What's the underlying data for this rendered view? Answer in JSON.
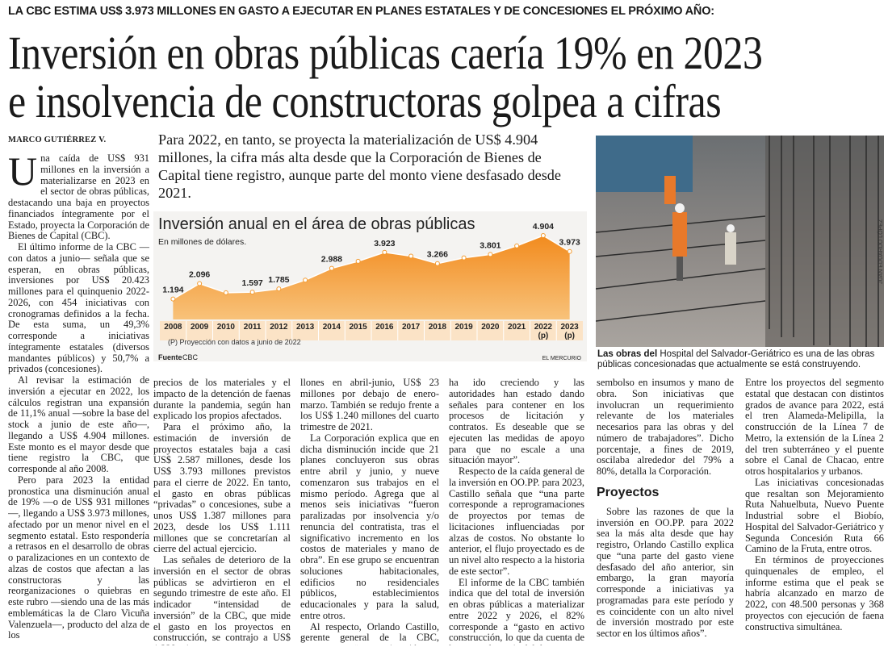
{
  "kicker": "LA CBC ESTIMA US$ 3.973 MILLONES EN GASTO A EJECUTAR EN PLANES ESTATALES Y DE CONCESIONES EL PRÓXIMO AÑO:",
  "headline": [
    "Inversión en obras públicas caería 19% en 2023",
    "e insolvencia de constructoras golpea a cifras"
  ],
  "byline": "MARCO GUTIÉRREZ V.",
  "intro": "Para 2022, en tanto, se proyecta la materialización de US$ 4.904 millones, la cifra más alta desde que la Corporación de Bienes de Capital tiene registro, aunque parte del monto viene desfasado desde 2021.",
  "chart_data": {
    "type": "area",
    "title": "Inversión anual en el área de obras públicas",
    "subtitle": "En millones de dólares.",
    "categories": [
      "2008",
      "2009",
      "2010",
      "2011",
      "2012",
      "2013",
      "2014",
      "2015",
      "2016",
      "2017",
      "2018",
      "2019",
      "2020",
      "2021",
      "2022 (p)",
      "2023 (p)"
    ],
    "values": [
      1194,
      2096,
      1560,
      1597,
      1785,
      2300,
      2988,
      3400,
      3923,
      3700,
      3266,
      3600,
      3801,
      4300,
      4904,
      3973
    ],
    "value_labels": [
      "1.194",
      "2.096",
      null,
      "1.597",
      "1.785",
      null,
      "2.988",
      null,
      "3.923",
      null,
      "3.266",
      null,
      "3.801",
      null,
      "4.904",
      "3.973"
    ],
    "color": "#f39a2e",
    "note": "(P) Proyección con datos a junio de 2022",
    "source_label": "Fuente",
    "source": "CBC",
    "publisher": "EL MERCURIO"
  },
  "photo": {
    "credit": "JUAN EDUARDO LÓPEZ",
    "caption_lead": "Las obras del",
    "caption": "Hospital del Salvador-Geriátrico es una de las obras públicas concesionadas que actualmente se está construyendo."
  },
  "columns": [
    [
      "Una caída de US$ 931 millones en la inversión a materializarse en 2023 en el sector de obras públicas, destacando una baja en proyectos financiados íntegramente por el Estado, proyecta la Corporación de Bienes de Capital (CBC).",
      "El último informe de la CBC —con datos a junio— señala que se esperan, en obras públicas, inversiones por US$ 20.423 millones para el quinquenio 2022-2026, con 454 iniciativas con cronogramas definidos a la fecha. De esta suma, un 49,3% corresponde a iniciativas íntegramente estatales (diversos mandantes públicos) y 50,7% a privados (concesiones).",
      "Al revisar la estimación de inversión a ejecutar en 2022, los cálculos registran una expansión de 11,1% anual —sobre la base del stock a junio de este año—, llegando a US$ 4.904 millones. Este monto es el mayor desde que tiene registro la CBC, que corresponde al año 2008.",
      "Pero para 2023 la entidad pronostica una disminución anual de 19% —o de US$ 931 millones—, llegando a US$ 3.973 millones, afectado por un menor nivel en el segmento estatal. Esto respondería a retrasos en el desarrollo de obras o paralizaciones en un contexto de alzas de costos que afectan a las constructoras y las reorganizaciones o quiebras en este rubro —siendo una de las más emblemáticas la de Claro Vicuña Valenzuela—, producto del alza de los"
    ],
    [
      "precios de los materiales y el impacto de la detención de faenas durante la pandemia, según han explicado los propios afectados.",
      "Para el próximo año, la estimación de inversión de proyectos estatales baja a casi US$ 2.587 millones, desde los US$ 3.793 millones previstos para el cierre de 2022. En tanto, el gasto en obras públicas “privadas” o concesiones, sube a unos US$ 1.387 millones para 2023, desde los US$ 1.111 millones que se concretarían al cierre del actual ejercicio.",
      "Las señales de deterioro de la inversión en el sector de obras públicas se advirtieron en el segundo trimestre de este año. El indicador “intensidad de inversión” de la CBC, que mide el gasto en los proyectos en construcción, se contrajo a US$ 1.228 mi-"
    ],
    [
      "llones en abril-junio, US$ 23 millones por debajo de enero-marzo. También se redujo frente a los US$ 1.240 millones del cuarto trimestre de 2021.",
      "La Corporación explica que en dicha disminución incide que 21 planes concluyeron sus obras entre abril y junio, y nueve comenzaron sus trabajos en el mismo período. Agrega que al menos seis iniciativas “fueron paralizadas por insolvencia y/o renuncia del contratista, tras el significativo incremento en los costos de materiales y mano de obra”. En ese grupo se encuentran soluciones habitacionales, edificios no residenciales públicos, establecimientos educacionales y para la salud, entre otros.",
      "Al respecto, Orlando Castillo, gerente general de la CBC, comenta que “es una situación que"
    ],
    [
      "ha ido creciendo y las autoridades han estado dando señales para contener en los procesos de licitación y contratos. Es deseable que se ejecuten las medidas de apoyo para que no escale a una situación mayor”.",
      "Respecto de la caída general de la inversión en OO.PP. para 2023, Castillo señala que “una parte corresponde a reprogramaciones de proyectos por temas de licitaciones influenciadas por alzas de costos. No obstante lo anterior, el flujo proyectado es de un nivel alto respecto a la historia de este sector”.",
      "El informe de la CBC también indica que del total de inversión en obras públicas a materializar entre 2022 y 2026, el 82% corresponde a “gasto en activo construcción, lo que da cuenta de la preponderancia del de-"
    ],
    [
      "sembolso en insumos y mano de obra. Son iniciativas que involucran un requerimiento relevante de los materiales necesarios para las obras y del número de trabajadores”. Dicho porcentaje, a fines de 2019, oscilaba alrededor del 79% a 80%, detalla la Corporación.",
      {
        "subhead": "Proyectos"
      },
      "Sobre las razones de que la inversión en OO.PP. para 2022 sea la más alta desde que hay registro, Orlando Castillo explica que “una parte del gasto viene desfasado del año anterior, sin embargo, la gran mayoría corresponde a iniciativas ya programadas para este período y es coincidente con un alto nivel de inversión mostrado por este sector en los últimos años”."
    ],
    [
      "Entre los proyectos del segmento estatal que destacan con distintos grados de avance para 2022, está el tren Alameda-Melipilla, la construcción de la Línea 7 de Metro, la extensión de la Línea 2 del tren subterráneo y el puente sobre el Canal de Chacao, entre otros hospitalarios y urbanos.",
      "Las iniciativas concesionadas que resaltan son Mejoramiento Ruta Nahuelbuta, Nuevo Puente Industrial sobre el Biobío, Hospital del Salvador-Geriátrico y Segunda Concesión Ruta 66 Camino de la Fruta, entre otros.",
      "En términos de proyecciones quinquenales de empleo, el informe estima que el peak se habría alcanzado en marzo de 2022, con 48.500 personas y 368 proyectos con ejecución de faena constructiva simultánea."
    ]
  ]
}
